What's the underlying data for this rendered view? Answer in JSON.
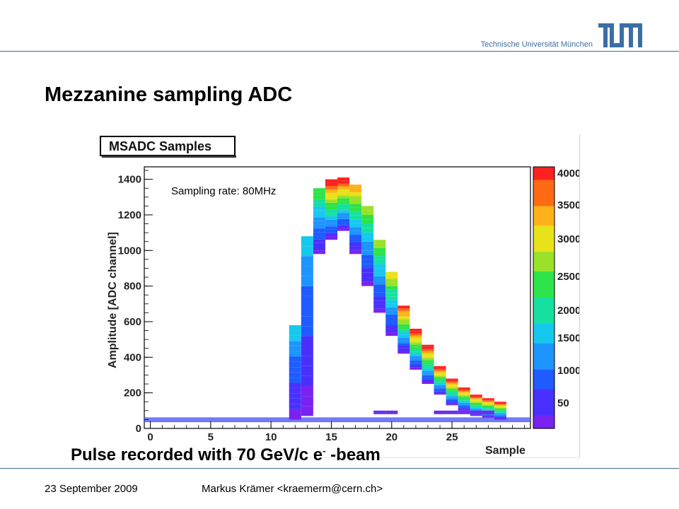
{
  "header": {
    "university": "Technische Universität München",
    "logo_text": "TUM",
    "accent_color": "#3b6fa4"
  },
  "slide": {
    "title": "Mezzanine sampling ADC",
    "caption_prefix": "Pulse recorded with 70 GeV/c e",
    "caption_sup": "-",
    "caption_suffix": " -beam"
  },
  "footer": {
    "date": "23 September 2009",
    "author": "Markus Krämer <kraemerm@cern.ch>"
  },
  "chart_data": {
    "type": "heatmap",
    "title": "MSADC Samples",
    "xlabel": "Sample",
    "ylabel": "Amplitude [ADC channel]",
    "annotation": "Sampling rate: 80MHz",
    "xlim": [
      -0.5,
      31.5
    ],
    "ylim": [
      0,
      1470
    ],
    "x_ticks": [
      0,
      5,
      10,
      15,
      20,
      25
    ],
    "y_ticks": [
      0,
      200,
      400,
      600,
      800,
      1000,
      1200,
      1400
    ],
    "colorbar_ticks": [
      "50",
      "1000",
      "1500",
      "2000",
      "2500",
      "3000",
      "3500",
      "4000"
    ],
    "colorscale": [
      "#7a22f0",
      "#4a30ff",
      "#1e5cff",
      "#1d95ff",
      "#17c8ee",
      "#16e0a0",
      "#2ee34a",
      "#9ae22a",
      "#e8e21a",
      "#ffb21a",
      "#ff6a14",
      "#ff2020"
    ],
    "baseline": 50,
    "pulse": [
      {
        "sample": 12,
        "min": 50,
        "max": 580,
        "top_level": 0.35
      },
      {
        "sample": 13,
        "min": 70,
        "max": 1080,
        "top_level": 0.3
      },
      {
        "sample": 14,
        "min": 980,
        "max": 1350,
        "top_level": 0.55
      },
      {
        "sample": 15,
        "min": 1060,
        "max": 1400,
        "top_level": 1.0
      },
      {
        "sample": 16,
        "min": 1110,
        "max": 1410,
        "top_level": 1.0
      },
      {
        "sample": 17,
        "min": 980,
        "max": 1370,
        "top_level": 0.8
      },
      {
        "sample": 18,
        "min": 800,
        "max": 1250,
        "top_level": 0.6
      },
      {
        "sample": 19,
        "min": 650,
        "max": 1060,
        "top_level": 0.62
      },
      {
        "sample": 20,
        "min": 520,
        "max": 880,
        "top_level": 0.72
      },
      {
        "sample": 21,
        "min": 420,
        "max": 690,
        "top_level": 0.95
      },
      {
        "sample": 22,
        "min": 330,
        "max": 560,
        "top_level": 1.0
      },
      {
        "sample": 23,
        "min": 250,
        "max": 470,
        "top_level": 1.0
      },
      {
        "sample": 24,
        "min": 190,
        "max": 350,
        "top_level": 1.0
      },
      {
        "sample": 25,
        "min": 130,
        "max": 280,
        "top_level": 1.0
      },
      {
        "sample": 26,
        "min": 100,
        "max": 230,
        "top_level": 1.0
      },
      {
        "sample": 27,
        "min": 70,
        "max": 190,
        "top_level": 1.0
      },
      {
        "sample": 28,
        "min": 60,
        "max": 170,
        "top_level": 1.0
      },
      {
        "sample": 29,
        "min": 50,
        "max": 150,
        "top_level": 1.0
      }
    ]
  }
}
